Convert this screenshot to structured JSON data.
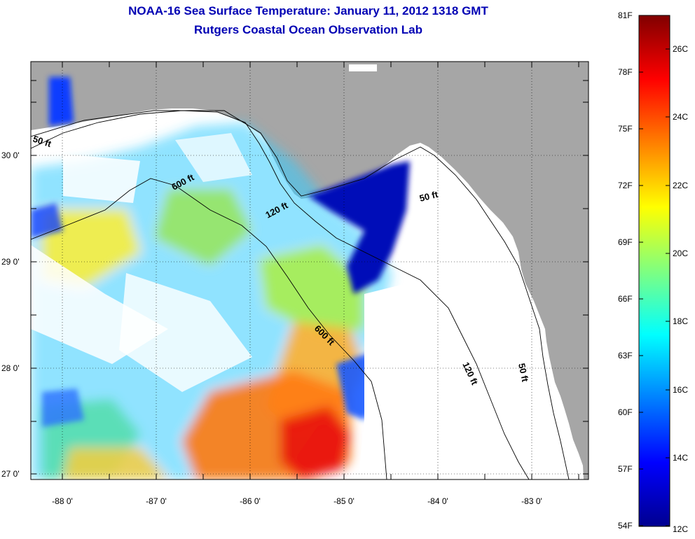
{
  "title": "NOAA-16 Sea Surface Temperature:  January 11, 2012 1318 GMT",
  "subtitle": "Rutgers Coastal Ocean Observation Lab",
  "map": {
    "lon_ticks": [
      "-88 0'",
      "-87 0'",
      "-86 0'",
      "-85 0'",
      "-84 0'",
      "-83 0'"
    ],
    "lat_ticks": [
      "30 0'",
      "29 0'",
      "28 0'",
      "27 0'"
    ],
    "contours": [
      {
        "id": "c50ft_w",
        "label": "50 ft"
      },
      {
        "id": "c600ft_a",
        "label": "600 ft"
      },
      {
        "id": "c120ft_a",
        "label": "120 ft"
      },
      {
        "id": "c50ft_e",
        "label": "50 ft"
      },
      {
        "id": "c600ft_b",
        "label": "600 ft"
      },
      {
        "id": "c120ft_b",
        "label": "120 ft"
      },
      {
        "id": "c50ft_s",
        "label": "50 ft"
      }
    ],
    "colors": {
      "land": "#a6a6a6",
      "no_data": "#ffffff"
    }
  },
  "colorbar": {
    "fahrenheit_labels": [
      "81F",
      "78F",
      "75F",
      "72F",
      "69F",
      "66F",
      "63F",
      "60F",
      "57F",
      "54F"
    ],
    "celsius_labels": [
      "26C",
      "24C",
      "22C",
      "20C",
      "18C",
      "16C",
      "14C",
      "12C"
    ],
    "colormap": "jet"
  }
}
